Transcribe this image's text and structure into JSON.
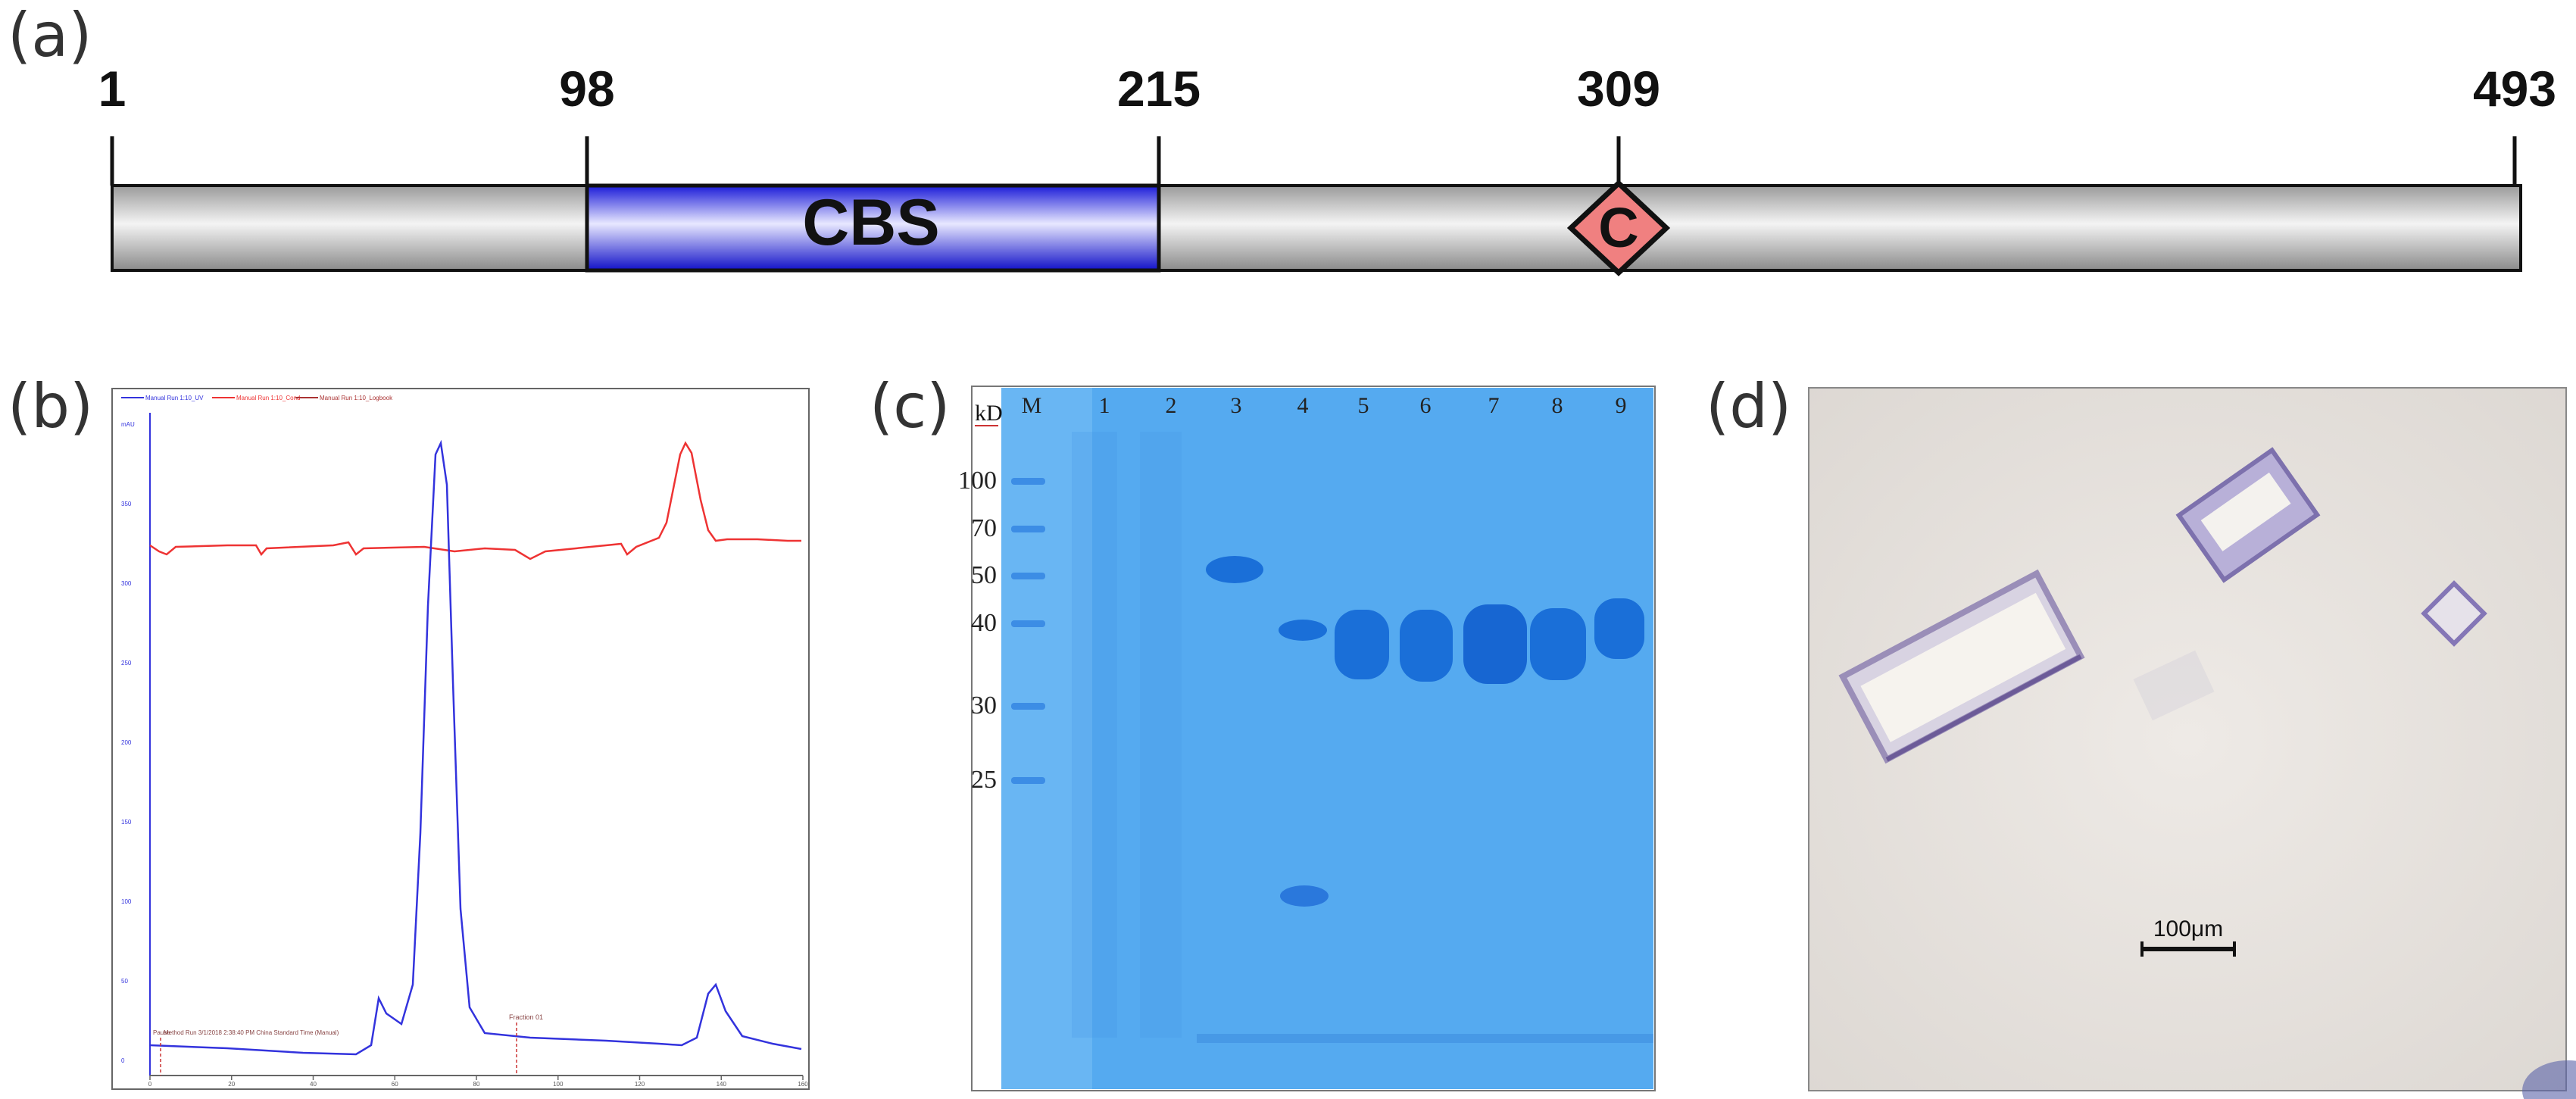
{
  "panel_labels": {
    "a": "(a)",
    "b": "(b)",
    "c": "(c)",
    "d": "(d)"
  },
  "domain_map": {
    "positions": [
      "1",
      "98",
      "215",
      "309",
      "493"
    ],
    "domain_label": "CBS",
    "site_label": "C",
    "colors": {
      "bar": "#d9d9d9",
      "cbs": "#3030e8",
      "site": "#f08080"
    }
  },
  "chromatogram": {
    "legend": [
      "Manual Run 1:10_UV",
      "Manual Run 1:10_Cond",
      "Manual Run 1:10_Logbook"
    ],
    "x_ticks": [
      "0",
      "20",
      "40",
      "60",
      "80",
      "100",
      "120",
      "140",
      "160"
    ],
    "y_ticks": [
      "0",
      "50",
      "100",
      "150",
      "200",
      "250",
      "300",
      "350",
      "mAU"
    ],
    "logbook_text": "Method Run 3/1/2018 2:38:40 PM China Standard Time (Manual)",
    "fraction_label": "Fraction 01",
    "paused_label": "Pause",
    "colors": {
      "uv": "#3333dd",
      "cond": "#ee3333"
    }
  },
  "gel": {
    "unit_label": "kD",
    "lane_labels": [
      "M",
      "1",
      "2",
      "3",
      "4",
      "5",
      "6",
      "7",
      "8",
      "9"
    ],
    "marker_kd": [
      "100",
      "70",
      "50",
      "40",
      "30",
      "25"
    ],
    "colors": {
      "background": "#55aaf0",
      "band": "#1a6fd8"
    }
  },
  "crystal": {
    "scale_label": "100μm"
  }
}
